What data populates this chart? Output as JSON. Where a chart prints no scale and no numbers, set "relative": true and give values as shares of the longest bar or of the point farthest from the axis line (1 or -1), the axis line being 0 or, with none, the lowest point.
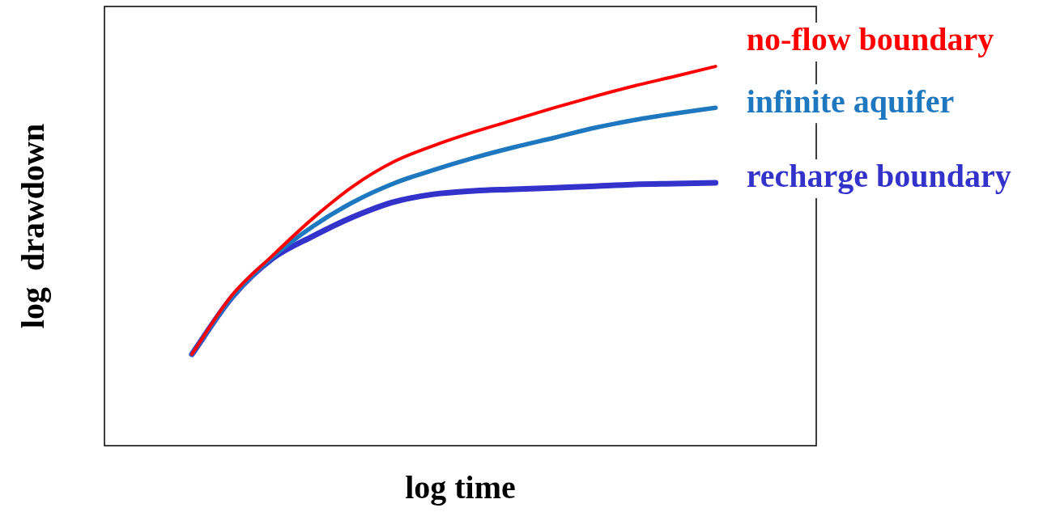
{
  "chart_data": {
    "type": "line",
    "relative": true,
    "xlabel": "log time",
    "ylabel": "log  drawdown",
    "categories": [
      null,
      null,
      null,
      null,
      null,
      null,
      null,
      null,
      null,
      null,
      null,
      null,
      null,
      null
    ],
    "series": [
      {
        "name": "no-flow boundary",
        "color": "#ff0000",
        "values": [
          0.241,
          0.397,
          0.501,
          0.599,
          0.684,
          0.748,
          0.791,
          0.827,
          0.859,
          0.891,
          0.921,
          0.949,
          0.974,
          1
        ]
      },
      {
        "name": "infinite aquifer",
        "color": "#1e78c0",
        "values": [
          0.241,
          0.392,
          0.497,
          0.578,
          0.642,
          0.691,
          0.727,
          0.759,
          0.787,
          0.812,
          0.838,
          0.859,
          0.876,
          0.891
        ]
      },
      {
        "name": "recharge boundary",
        "color": "#3333cc",
        "values": [
          0.241,
          0.392,
          0.493,
          0.552,
          0.603,
          0.642,
          0.663,
          0.672,
          0.676,
          0.68,
          0.684,
          0.689,
          0.691,
          0.693
        ]
      }
    ]
  }
}
